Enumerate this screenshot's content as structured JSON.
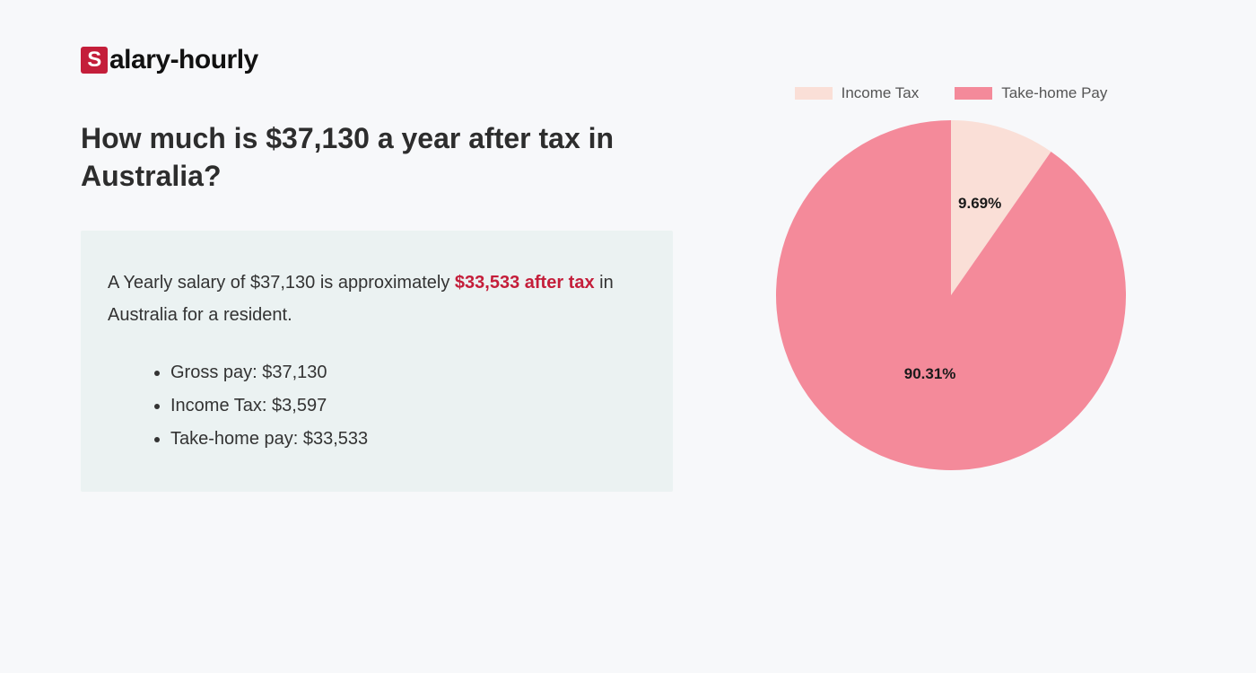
{
  "logo": {
    "badge_letter": "S",
    "rest": "alary-hourly"
  },
  "title": "How much is $37,130 a year after tax in Australia?",
  "summary": {
    "prefix": "A Yearly salary of $37,130 is approximately ",
    "highlight": "$33,533 after tax",
    "suffix": " in Australia for a resident."
  },
  "bullets": [
    "Gross pay: $37,130",
    "Income Tax: $3,597",
    "Take-home pay: $33,533"
  ],
  "chart": {
    "type": "pie",
    "radius": 195,
    "background_color": "#f7f8fa",
    "slices": [
      {
        "label": "Income Tax",
        "value": 9.69,
        "percent_label": "9.69%",
        "color": "#fadfd7"
      },
      {
        "label": "Take-home Pay",
        "value": 90.31,
        "percent_label": "90.31%",
        "color": "#f48a9a"
      }
    ],
    "legend_text_color": "#555555",
    "label_text_color": "#1a1a1a",
    "label_fontsize": 17,
    "label_fontweight": 700,
    "start_angle_deg": -90
  },
  "colors": {
    "page_bg": "#f7f8fa",
    "box_bg": "#ebf2f2",
    "accent": "#c41e3a",
    "text": "#2d2d2d"
  }
}
